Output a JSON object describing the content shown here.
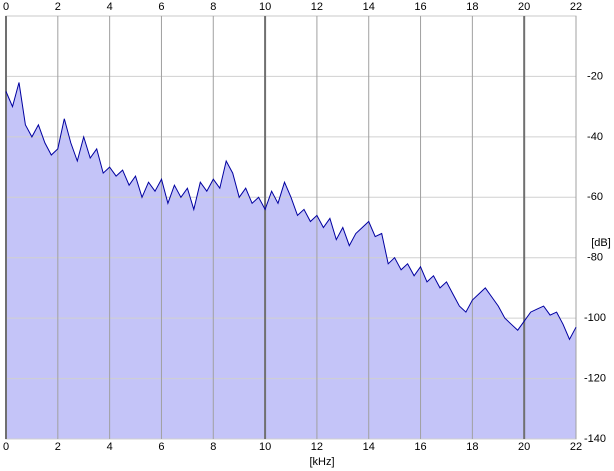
{
  "chart_data": {
    "type": "area",
    "x_label": "[kHz]",
    "y_label": "[dB]",
    "x": [
      0,
      0.25,
      0.5,
      0.75,
      1,
      1.25,
      1.5,
      1.75,
      2,
      2.25,
      2.5,
      2.75,
      3,
      3.25,
      3.5,
      3.75,
      4,
      4.25,
      4.5,
      4.75,
      5,
      5.25,
      5.5,
      5.75,
      6,
      6.25,
      6.5,
      6.75,
      7,
      7.25,
      7.5,
      7.75,
      8,
      8.25,
      8.5,
      8.75,
      9,
      9.25,
      9.5,
      9.75,
      10,
      10.25,
      10.5,
      10.75,
      11,
      11.25,
      11.5,
      11.75,
      12,
      12.25,
      12.5,
      12.75,
      13,
      13.25,
      13.5,
      13.75,
      14,
      14.25,
      14.5,
      14.75,
      15,
      15.25,
      15.5,
      15.75,
      16,
      16.25,
      16.5,
      16.75,
      17,
      17.25,
      17.5,
      17.75,
      18,
      18.25,
      18.5,
      18.75,
      19,
      19.25,
      19.5,
      19.75,
      20,
      20.25,
      20.5,
      20.75,
      21,
      21.25,
      21.5,
      21.75,
      22
    ],
    "values": [
      -25,
      -30,
      -22,
      -36,
      -40,
      -36,
      -42,
      -46,
      -44,
      -34,
      -42,
      -48,
      -40,
      -47,
      -44,
      -52,
      -50,
      -53,
      -51,
      -56,
      -53,
      -60,
      -55,
      -58,
      -54,
      -62,
      -56,
      -60,
      -57,
      -64,
      -55,
      -58,
      -54,
      -57,
      -48,
      -52,
      -60,
      -57,
      -62,
      -60,
      -64,
      -58,
      -62,
      -55,
      -60,
      -66,
      -64,
      -68,
      -66,
      -70,
      -67,
      -74,
      -70,
      -76,
      -72,
      -70,
      -68,
      -73,
      -72,
      -82,
      -80,
      -84,
      -82,
      -86,
      -83,
      -88,
      -86,
      -90,
      -88,
      -92,
      -96,
      -98,
      -94,
      -92,
      -90,
      -93,
      -96,
      -100,
      -102,
      -104,
      -101,
      -98,
      -97,
      -96,
      -99,
      -98,
      -102,
      -107,
      -103
    ],
    "line_color": "#0000a0",
    "fill_color": "#c4c4f8",
    "xlim": [
      0,
      22
    ],
    "ylim": [
      -140,
      0
    ],
    "xticks": [
      0,
      2,
      4,
      6,
      8,
      10,
      12,
      14,
      16,
      18,
      20,
      22
    ],
    "yticks": [
      -20,
      -40,
      -60,
      -80,
      -100,
      -120,
      -140
    ],
    "grid": true
  }
}
